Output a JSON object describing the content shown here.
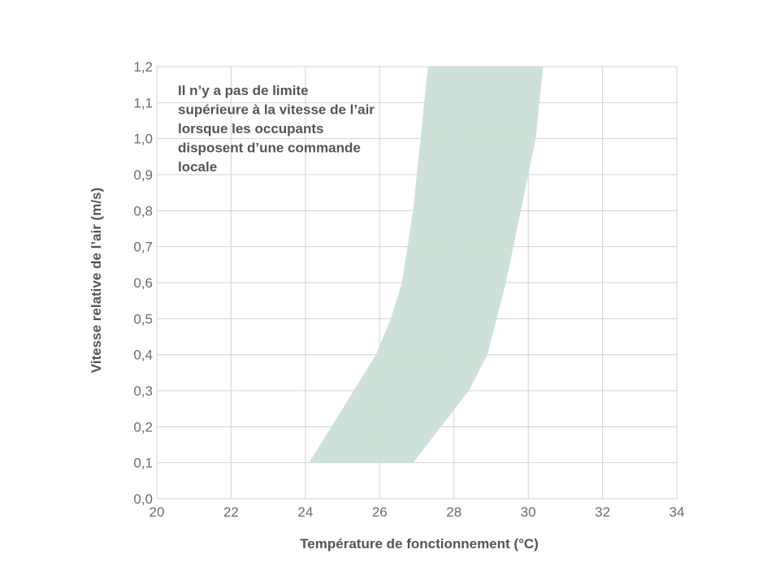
{
  "chart_data": {
    "type": "area",
    "xlabel": "Température de fonctionnement (°C)",
    "ylabel": "Vitesse relative de l’air (m/s)",
    "xlim": [
      20,
      34
    ],
    "ylim": [
      0.0,
      1.2
    ],
    "xticks": [
      "20",
      "22",
      "24",
      "26",
      "28",
      "30",
      "32",
      "34"
    ],
    "yticks": [
      "0,0",
      "0,1",
      "0,2",
      "0,3",
      "0,4",
      "0,5",
      "0,6",
      "0,7",
      "0,8",
      "0,9",
      "1,0",
      "1,1",
      "1,2"
    ],
    "grid": true,
    "annotation": [
      "Il n’y a pas de limite",
      "supérieure à la vitesse de l’air",
      "lorsque les occupants",
      "disposent d’une commande",
      "locale"
    ],
    "band": {
      "lower": {
        "x": [
          24.1,
          25.3,
          25.9,
          26.3,
          26.6,
          26.9,
          27.1,
          27.3
        ],
        "y": [
          0.1,
          0.3,
          0.4,
          0.5,
          0.6,
          0.8,
          1.0,
          1.2
        ]
      },
      "upper": {
        "x": [
          26.9,
          28.4,
          28.9,
          29.4,
          29.8,
          30.0,
          30.2,
          30.4
        ],
        "y": [
          0.1,
          0.3,
          0.4,
          0.6,
          0.8,
          0.9,
          1.0,
          1.2
        ]
      }
    },
    "colors": {
      "band": "#cbdfd6",
      "grid": "#d3d3d3",
      "text": "#555555"
    }
  }
}
